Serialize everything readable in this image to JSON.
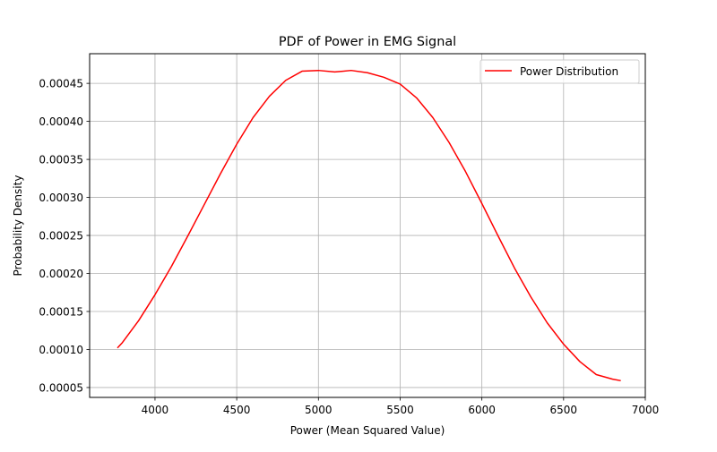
{
  "chart_data": {
    "type": "line",
    "title": "PDF of Power in EMG Signal",
    "xlabel": "Power (Mean Squared Value)",
    "ylabel": "Probability Density",
    "xlim": [
      3600,
      7000
    ],
    "ylim": [
      3.7e-05,
      0.000489
    ],
    "xticks": [
      4000,
      4500,
      5000,
      5500,
      6000,
      6500,
      7000
    ],
    "xtick_labels": [
      "4000",
      "4500",
      "5000",
      "5500",
      "6000",
      "6500",
      "7000"
    ],
    "yticks": [
      5e-05,
      0.0001,
      0.00015,
      0.0002,
      0.00025,
      0.0003,
      0.00035,
      0.0004,
      0.00045
    ],
    "ytick_labels": [
      "0.00005",
      "0.00010",
      "0.00015",
      "0.00020",
      "0.00025",
      "0.00030",
      "0.00035",
      "0.00040",
      "0.00045"
    ],
    "grid": true,
    "legend": {
      "placement": "top-right",
      "entries": [
        "Power Distribution"
      ]
    },
    "series": [
      {
        "name": "Power Distribution",
        "color": "#ff0000",
        "x": [
          3770,
          3800,
          3900,
          4000,
          4100,
          4200,
          4300,
          4400,
          4500,
          4600,
          4700,
          4800,
          4900,
          5000,
          5100,
          5200,
          5300,
          5400,
          5500,
          5600,
          5700,
          5800,
          5900,
          6000,
          6100,
          6200,
          6300,
          6400,
          6500,
          6600,
          6700,
          6800,
          6850
        ],
        "y": [
          0.000102,
          0.000109,
          0.000138,
          0.000172,
          0.000209,
          0.000249,
          0.00029,
          0.000331,
          0.00037,
          0.000405,
          0.000433,
          0.000454,
          0.000466,
          0.000467,
          0.000465,
          0.000467,
          0.000464,
          0.000458,
          0.000449,
          0.000431,
          0.000405,
          0.000372,
          0.000334,
          0.000292,
          0.000249,
          0.000207,
          0.000169,
          0.000135,
          0.000107,
          8.4e-05,
          6.7e-05,
          6.1e-05,
          5.9e-05
        ]
      }
    ]
  }
}
